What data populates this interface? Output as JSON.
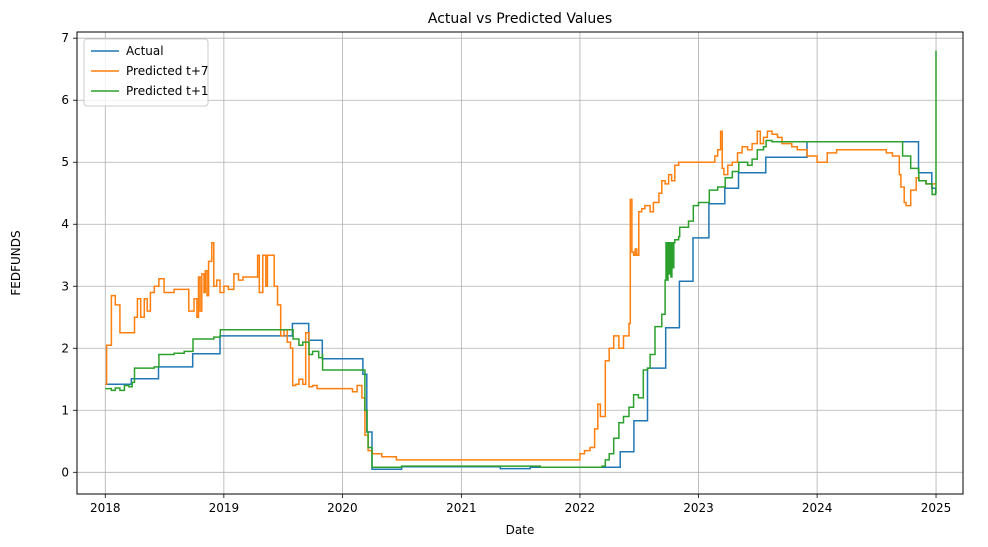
{
  "chart_data": {
    "type": "line",
    "title": "Actual vs Predicted Values",
    "xlabel": "Date",
    "ylabel": "FEDFUNDS",
    "xlim": [
      "2017-10-06",
      "2025-03-25"
    ],
    "ylim": [
      -0.35,
      7.1
    ],
    "xticks": [
      "2018",
      "2019",
      "2020",
      "2021",
      "2022",
      "2023",
      "2024",
      "2025"
    ],
    "yticks": [
      0,
      1,
      2,
      3,
      4,
      5,
      6,
      7
    ],
    "grid": true,
    "legend": "top-left",
    "series": [
      {
        "name": "Actual",
        "color": "#1f77b4",
        "x": [
          "2018-01-01",
          "2018-03-01",
          "2018-03-22",
          "2018-06-14",
          "2018-09-27",
          "2018-12-20",
          "2019-07-31",
          "2019-08-01",
          "2019-09-19",
          "2019-10-31",
          "2020-03-04",
          "2020-03-16",
          "2020-04-01",
          "2020-07-01",
          "2021-01-01",
          "2021-05-01",
          "2021-08-01",
          "2022-03-17",
          "2022-05-05",
          "2022-06-16",
          "2022-07-28",
          "2022-09-22",
          "2022-11-03",
          "2022-12-15",
          "2023-02-02",
          "2023-03-23",
          "2023-05-04",
          "2023-07-27",
          "2023-12-01",
          "2024-09-19",
          "2024-11-08",
          "2024-12-19",
          "2024-12-31"
        ],
        "y": [
          1.42,
          1.42,
          1.51,
          1.7,
          1.91,
          2.2,
          2.4,
          2.4,
          2.13,
          1.83,
          1.58,
          0.65,
          0.05,
          0.09,
          0.09,
          0.06,
          0.08,
          0.08,
          0.33,
          0.83,
          1.68,
          2.33,
          3.08,
          3.78,
          4.33,
          4.58,
          4.83,
          5.08,
          5.33,
          5.33,
          4.83,
          4.58,
          4.48
        ]
      },
      {
        "name": "Predicted t+7",
        "color": "#ff7f0e",
        "x": [
          "2018-01-01",
          "2018-01-05",
          "2018-01-10",
          "2018-01-20",
          "2018-02-01",
          "2018-02-15",
          "2018-03-01",
          "2018-03-15",
          "2018-04-01",
          "2018-04-10",
          "2018-04-20",
          "2018-05-01",
          "2018-05-10",
          "2018-05-20",
          "2018-06-01",
          "2018-06-15",
          "2018-07-01",
          "2018-07-15",
          "2018-08-01",
          "2018-08-15",
          "2018-09-01",
          "2018-09-15",
          "2018-09-25",
          "2018-10-01",
          "2018-10-10",
          "2018-10-15",
          "2018-10-20",
          "2018-10-25",
          "2018-11-01",
          "2018-11-05",
          "2018-11-10",
          "2018-11-15",
          "2018-11-25",
          "2018-12-01",
          "2018-12-10",
          "2018-12-20",
          "2019-01-01",
          "2019-01-15",
          "2019-02-01",
          "2019-02-15",
          "2019-03-01",
          "2019-03-20",
          "2019-04-01",
          "2019-04-15",
          "2019-04-20",
          "2019-05-01",
          "2019-05-10",
          "2019-05-15",
          "2019-05-25",
          "2019-06-05",
          "2019-06-15",
          "2019-06-25",
          "2019-07-05",
          "2019-07-15",
          "2019-07-25",
          "2019-08-01",
          "2019-08-10",
          "2019-08-20",
          "2019-09-01",
          "2019-09-10",
          "2019-09-20",
          "2019-10-01",
          "2019-10-15",
          "2019-11-01",
          "2019-12-01",
          "2020-01-01",
          "2020-02-01",
          "2020-02-15",
          "2020-03-01",
          "2020-03-10",
          "2020-03-20",
          "2020-04-01",
          "2020-05-01",
          "2020-06-01",
          "2020-06-15",
          "2020-07-01",
          "2021-01-01",
          "2021-06-01",
          "2021-10-01",
          "2021-11-15",
          "2021-12-01",
          "2021-12-20",
          "2022-01-01",
          "2022-01-15",
          "2022-02-01",
          "2022-02-15",
          "2022-02-25",
          "2022-03-05",
          "2022-03-20",
          "2022-04-01",
          "2022-04-15",
          "2022-05-01",
          "2022-05-15",
          "2022-05-25",
          "2022-06-01",
          "2022-06-05",
          "2022-06-10",
          "2022-06-15",
          "2022-06-20",
          "2022-06-25",
          "2022-07-01",
          "2022-07-10",
          "2022-07-20",
          "2022-07-28",
          "2022-08-05",
          "2022-08-15",
          "2022-09-01",
          "2022-09-10",
          "2022-09-20",
          "2022-10-01",
          "2022-10-10",
          "2022-10-20",
          "2022-11-01",
          "2022-11-10",
          "2022-11-20",
          "2022-12-01",
          "2022-12-15",
          "2023-01-01",
          "2023-01-20",
          "2023-02-01",
          "2023-02-20",
          "2023-03-01",
          "2023-03-10",
          "2023-03-15",
          "2023-03-20",
          "2023-04-01",
          "2023-04-15",
          "2023-05-01",
          "2023-05-15",
          "2023-06-01",
          "2023-06-15",
          "2023-07-01",
          "2023-07-10",
          "2023-07-20",
          "2023-08-01",
          "2023-08-15",
          "2023-09-01",
          "2023-09-15",
          "2023-10-01",
          "2023-10-15",
          "2023-11-01",
          "2023-11-15",
          "2023-12-01",
          "2024-01-01",
          "2024-01-20",
          "2024-02-01",
          "2024-03-01",
          "2024-04-01",
          "2024-05-01",
          "2024-06-01",
          "2024-07-01",
          "2024-08-01",
          "2024-08-20",
          "2024-09-01",
          "2024-09-10",
          "2024-09-15",
          "2024-09-25",
          "2024-10-01",
          "2024-10-15",
          "2024-11-01",
          "2024-11-10",
          "2024-11-20",
          "2024-12-01",
          "2024-12-15",
          "2024-12-31"
        ],
        "y": [
          1.42,
          2.05,
          2.05,
          2.85,
          2.7,
          2.25,
          2.25,
          2.25,
          2.5,
          2.8,
          2.5,
          2.8,
          2.6,
          2.9,
          3.0,
          3.12,
          2.9,
          2.9,
          2.95,
          2.95,
          2.95,
          2.6,
          2.6,
          2.8,
          2.5,
          3.15,
          2.6,
          3.2,
          2.9,
          3.25,
          2.85,
          3.4,
          3.7,
          3.0,
          3.1,
          2.9,
          3.0,
          2.95,
          3.2,
          3.1,
          3.15,
          3.15,
          3.15,
          3.5,
          2.9,
          3.5,
          3.0,
          3.5,
          3.5,
          3.0,
          2.7,
          2.2,
          2.3,
          2.1,
          2.0,
          1.4,
          1.42,
          1.5,
          1.42,
          2.25,
          1.38,
          1.4,
          1.35,
          1.35,
          1.35,
          1.35,
          1.3,
          1.4,
          1.2,
          0.6,
          0.35,
          0.3,
          0.25,
          0.25,
          0.2,
          0.2,
          0.2,
          0.2,
          0.2,
          0.2,
          0.2,
          0.2,
          0.3,
          0.35,
          0.4,
          0.7,
          1.1,
          0.9,
          1.8,
          2.0,
          2.2,
          2.0,
          2.2,
          2.2,
          2.4,
          4.4,
          3.55,
          3.5,
          3.6,
          3.5,
          4.2,
          4.25,
          4.3,
          4.3,
          4.2,
          4.35,
          4.5,
          4.7,
          4.65,
          4.8,
          4.7,
          4.95,
          5.0,
          5.0,
          5.0,
          5.0,
          5.0,
          5.0,
          5.0,
          5.0,
          5.1,
          5.2,
          5.5,
          4.9,
          4.8,
          4.95,
          5.0,
          5.15,
          5.25,
          5.2,
          5.3,
          5.5,
          5.3,
          5.4,
          5.5,
          5.45,
          5.4,
          5.3,
          5.3,
          5.25,
          5.2,
          5.2,
          5.1,
          5.0,
          5.0,
          5.15,
          5.2,
          5.2,
          5.2,
          5.2,
          5.2,
          5.15,
          5.1,
          5.1,
          4.8,
          4.6,
          4.35,
          4.3,
          4.55,
          4.75,
          4.7,
          4.7,
          4.65,
          4.65,
          4.65
        ]
      },
      {
        "name": "Predicted t+1",
        "color": "#2ca02c",
        "x": [
          "2018-01-01",
          "2018-01-20",
          "2018-02-01",
          "2018-02-15",
          "2018-03-01",
          "2018-03-15",
          "2018-03-25",
          "2018-04-01",
          "2018-06-01",
          "2018-06-15",
          "2018-08-01",
          "2018-09-01",
          "2018-09-28",
          "2018-12-01",
          "2018-12-21",
          "2019-07-01",
          "2019-07-31",
          "2019-08-02",
          "2019-08-20",
          "2019-09-01",
          "2019-09-20",
          "2019-10-01",
          "2019-10-20",
          "2019-10-31",
          "2019-11-01",
          "2020-03-04",
          "2020-03-10",
          "2020-03-17",
          "2020-03-20",
          "2020-04-01",
          "2020-07-01",
          "2021-01-01",
          "2021-06-01",
          "2021-09-01",
          "2022-03-01",
          "2022-03-10",
          "2022-03-20",
          "2022-04-01",
          "2022-04-15",
          "2022-05-01",
          "2022-05-15",
          "2022-06-01",
          "2022-06-15",
          "2022-06-30",
          "2022-07-15",
          "2022-07-28",
          "2022-08-05",
          "2022-08-20",
          "2022-09-01",
          "2022-09-10",
          "2022-09-20",
          "2022-09-23",
          "2022-09-26",
          "2022-09-29",
          "2022-10-02",
          "2022-10-05",
          "2022-10-08",
          "2022-10-11",
          "2022-10-14",
          "2022-10-17",
          "2022-10-20",
          "2022-11-01",
          "2022-11-04",
          "2022-12-01",
          "2022-12-16",
          "2023-01-01",
          "2023-02-03",
          "2023-03-01",
          "2023-03-24",
          "2023-04-15",
          "2023-05-05",
          "2023-06-01",
          "2023-06-15",
          "2023-07-01",
          "2023-07-20",
          "2023-07-28",
          "2023-08-15",
          "2023-09-15",
          "2023-10-15",
          "2023-12-01",
          "2024-06-01",
          "2024-09-01",
          "2024-09-20",
          "2024-10-01",
          "2024-10-15",
          "2024-11-09",
          "2024-12-01",
          "2024-12-20",
          "2024-12-30",
          "2025-01-01"
        ],
        "y": [
          1.35,
          1.32,
          1.36,
          1.32,
          1.4,
          1.38,
          1.45,
          1.68,
          1.7,
          1.9,
          1.92,
          1.95,
          2.15,
          2.18,
          2.3,
          2.3,
          2.3,
          2.15,
          2.05,
          2.1,
          1.9,
          1.95,
          1.85,
          1.9,
          1.65,
          1.65,
          1.0,
          0.65,
          0.4,
          0.08,
          0.1,
          0.1,
          0.1,
          0.08,
          0.08,
          0.1,
          0.2,
          0.3,
          0.55,
          0.8,
          0.9,
          1.05,
          1.25,
          1.2,
          1.65,
          1.68,
          1.9,
          2.35,
          2.35,
          2.55,
          3.1,
          3.7,
          3.1,
          3.7,
          3.2,
          3.7,
          3.15,
          3.7,
          3.3,
          3.7,
          3.75,
          3.8,
          3.95,
          4.05,
          4.3,
          4.35,
          4.55,
          4.6,
          4.75,
          4.85,
          5.0,
          4.95,
          5.05,
          5.2,
          5.25,
          5.35,
          5.33,
          5.33,
          5.33,
          5.33,
          5.33,
          5.33,
          5.1,
          5.1,
          4.9,
          4.7,
          4.65,
          4.48,
          4.5,
          6.8
        ]
      }
    ]
  }
}
